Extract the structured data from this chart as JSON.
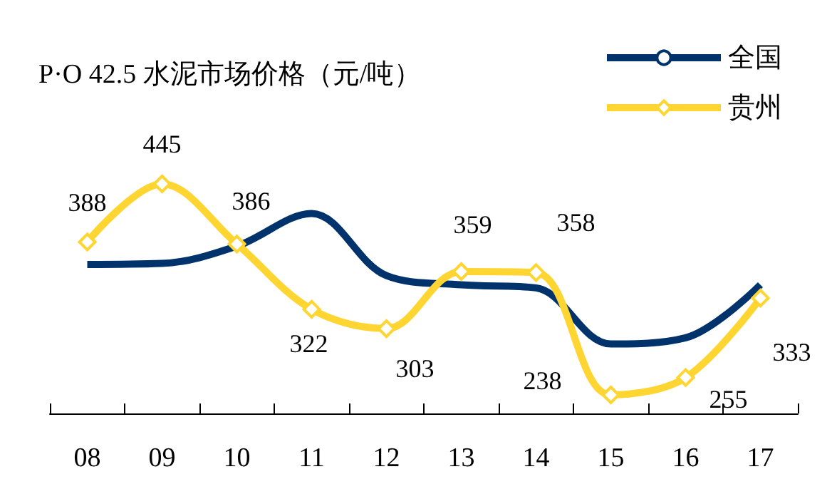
{
  "chart_data": {
    "type": "line",
    "title": "P·O 42.5 水泥市场价格（元/吨）",
    "categories": [
      "08",
      "09",
      "10",
      "11",
      "12",
      "13",
      "14",
      "15",
      "16",
      "17"
    ],
    "series": [
      {
        "name": "全国",
        "color": "#00336b",
        "marker": "none",
        "values": [
          366,
          367,
          384,
          416,
          355,
          346,
          343,
          288,
          294,
          346
        ]
      },
      {
        "name": "贵州",
        "color": "#ffd531",
        "marker": "diamond",
        "values": [
          388,
          445,
          386,
          322,
          303,
          359,
          358,
          238,
          255,
          333
        ],
        "value_labels": [
          "388",
          "445",
          "386",
          "322",
          "303",
          "359",
          "358",
          "238",
          "255",
          "333"
        ]
      }
    ],
    "tick_labels": "x",
    "legend": "top right"
  }
}
